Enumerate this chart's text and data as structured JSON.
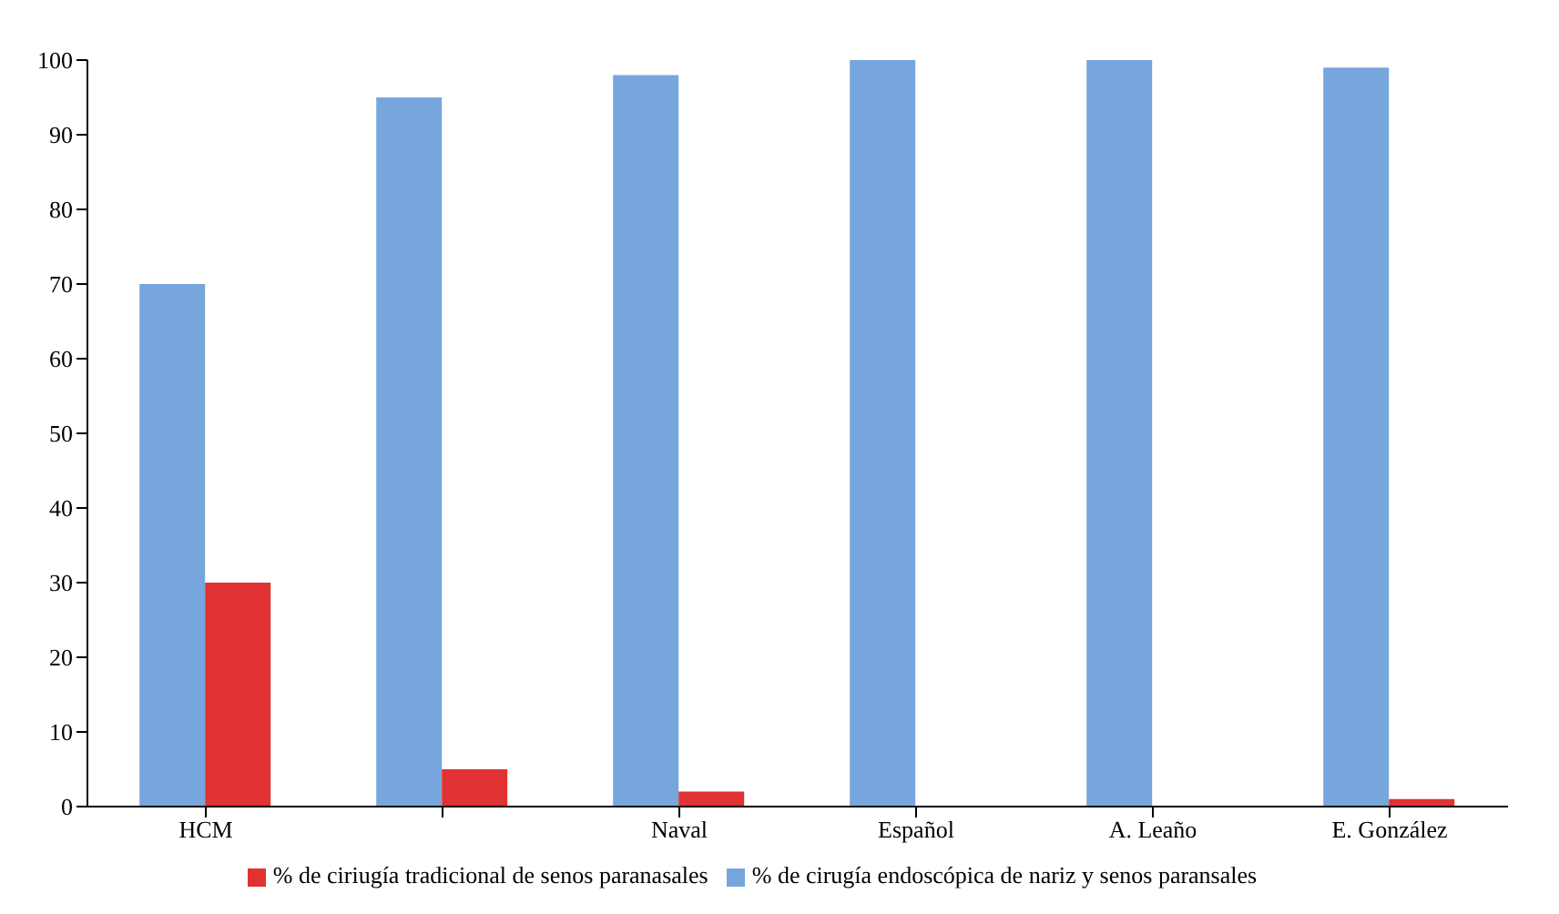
{
  "chart_data": {
    "type": "bar",
    "categories": [
      "HCM",
      null,
      "Naval",
      "Español",
      "A. Leaño",
      "E. González"
    ],
    "series": [
      {
        "name": "% de cirugía endoscópica de nariz y senos paransales",
        "color": "#77a6dc",
        "values": [
          70,
          95,
          98,
          100,
          100,
          99
        ]
      },
      {
        "name": "% de ciriugía tradicional de senos paranasales",
        "color": "#e03232",
        "values": [
          30,
          5,
          2,
          0,
          0,
          1
        ]
      }
    ],
    "ylim": [
      0,
      100
    ],
    "yticks": [
      0,
      10,
      20,
      30,
      40,
      50,
      60,
      70,
      80,
      90,
      100
    ],
    "grid": false,
    "legend": "bottom"
  }
}
